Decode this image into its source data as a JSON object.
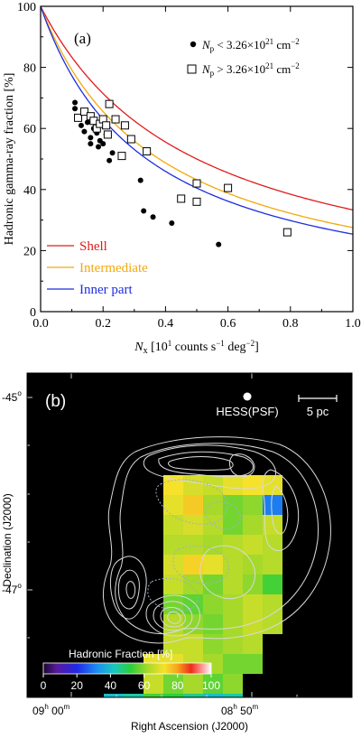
{
  "chart_data": [
    {
      "type": "scatter",
      "panel_label": "(a)",
      "xlabel": "N_x [10^1 counts s^-1 deg^-2]",
      "xlabel_parts": {
        "sym": "N",
        "sub": "x",
        "pre": " [10",
        "sup1": "1",
        "mid": " counts s",
        "sup2": "−1",
        "mid2": " deg",
        "sup3": "−2",
        "post": "]"
      },
      "ylabel": "Hadronic gamma-ray fraction [%]",
      "xlim": [
        0,
        1
      ],
      "ylim": [
        0,
        100
      ],
      "xticks": [
        "0.0",
        "0.2",
        "0.4",
        "0.6",
        "0.8",
        "1.0"
      ],
      "yticks": [
        "0",
        "20",
        "40",
        "60",
        "80",
        "100"
      ],
      "grid": false,
      "legend_position": "top-right",
      "legend": [
        {
          "marker": "filled-circle",
          "text_parts": {
            "sym": "N",
            "sub": "p",
            "rel": " < 3.26×10",
            "sup": "21",
            "unit": " cm",
            "usup": "−2"
          }
        },
        {
          "marker": "open-square",
          "text_parts": {
            "sym": "N",
            "sub": "p",
            "rel": " > 3.26×10",
            "sup": "21",
            "unit": " cm",
            "usup": "−2"
          }
        }
      ],
      "series": [
        {
          "name": "N_p < 3.26×10^21 cm^-2",
          "marker": "filled-circle",
          "points": [
            [
              0.11,
              66.5
            ],
            [
              0.11,
              68.5
            ],
            [
              0.13,
              61
            ],
            [
              0.14,
              59
            ],
            [
              0.15,
              62
            ],
            [
              0.16,
              55
            ],
            [
              0.16,
              57
            ],
            [
              0.17,
              60
            ],
            [
              0.18,
              58.5
            ],
            [
              0.185,
              54
            ],
            [
              0.19,
              56
            ],
            [
              0.2,
              55
            ],
            [
              0.21,
              58
            ],
            [
              0.22,
              49.5
            ],
            [
              0.23,
              52
            ],
            [
              0.32,
              43
            ],
            [
              0.33,
              33
            ],
            [
              0.36,
              31
            ],
            [
              0.42,
              29
            ],
            [
              0.57,
              22
            ]
          ]
        },
        {
          "name": "N_p > 3.26×10^21 cm^-2",
          "marker": "open-square",
          "points": [
            [
              0.12,
              63.5
            ],
            [
              0.14,
              65.5
            ],
            [
              0.16,
              64
            ],
            [
              0.17,
              62.5
            ],
            [
              0.18,
              60
            ],
            [
              0.19,
              61.5
            ],
            [
              0.2,
              63
            ],
            [
              0.21,
              61
            ],
            [
              0.215,
              58
            ],
            [
              0.22,
              68
            ],
            [
              0.24,
              63
            ],
            [
              0.26,
              51
            ],
            [
              0.27,
              61
            ],
            [
              0.29,
              56.5
            ],
            [
              0.34,
              52.5
            ],
            [
              0.45,
              37
            ],
            [
              0.5,
              36
            ],
            [
              0.5,
              42
            ],
            [
              0.6,
              40.5
            ],
            [
              0.79,
              26
            ]
          ]
        }
      ],
      "curves": [
        {
          "name": "Shell",
          "color": "#e11b1b",
          "k": 0.5
        },
        {
          "name": "Intermediate",
          "color": "#f2a90c",
          "k": 0.38
        },
        {
          "name": "Inner part",
          "color": "#1d2ee0",
          "k": 0.34
        }
      ]
    },
    {
      "type": "heatmap",
      "panel_label": "(b)",
      "xlabel": "Right Ascension (J2000)",
      "ylabel": "Declination (J2000)",
      "xticks": [
        {
          "h": "09",
          "m": "00"
        },
        {
          "h": "08",
          "m": "50"
        }
      ],
      "yticks": [
        {
          "deg": "-45",
          "sym": "o"
        },
        {
          "deg": "-47",
          "sym": "o"
        }
      ],
      "psf_label": "HESS(PSF)",
      "scale_label": "5 pc",
      "colorbar": {
        "title": "Hadronic Fraction [%]",
        "ticks": [
          "0",
          "20",
          "40",
          "60",
          "80",
          "100"
        ],
        "range": [
          0,
          100
        ]
      },
      "grid_values": [
        [
          null,
          null,
          null,
          null,
          null,
          null,
          null,
          null,
          null,
          null,
          null,
          null
        ],
        [
          null,
          null,
          null,
          null,
          null,
          null,
          null,
          null,
          null,
          null,
          null,
          null
        ],
        [
          null,
          null,
          null,
          null,
          null,
          null,
          null,
          null,
          null,
          null,
          null,
          null
        ],
        [
          null,
          null,
          null,
          null,
          null,
          null,
          72,
          68,
          66,
          70,
          72,
          70
        ],
        [
          null,
          null,
          null,
          null,
          null,
          null,
          70,
          75,
          62,
          58,
          60,
          30
        ],
        [
          null,
          null,
          null,
          null,
          null,
          null,
          66,
          68,
          64,
          58,
          62,
          66
        ],
        [
          null,
          null,
          null,
          null,
          null,
          null,
          64,
          64,
          62,
          64,
          66,
          64
        ],
        [
          null,
          null,
          null,
          null,
          null,
          null,
          68,
          74,
          70,
          64,
          62,
          64
        ],
        [
          null,
          null,
          null,
          null,
          null,
          null,
          66,
          62,
          58,
          64,
          60,
          54
        ],
        [
          null,
          null,
          null,
          null,
          null,
          null,
          58,
          56,
          60,
          62,
          66,
          64
        ],
        [
          null,
          null,
          null,
          null,
          null,
          null,
          64,
          60,
          58,
          62,
          66,
          64
        ],
        [
          null,
          null,
          null,
          null,
          null,
          null,
          66,
          66,
          60,
          62,
          64,
          null
        ],
        [
          null,
          null,
          null,
          null,
          null,
          70,
          70,
          66,
          62,
          58,
          58,
          null
        ],
        [
          null,
          null,
          null,
          null,
          null,
          66,
          58,
          62,
          56,
          60,
          null,
          null
        ],
        [
          null,
          null,
          null,
          40,
          44,
          54,
          52,
          46,
          40,
          44,
          null,
          null
        ]
      ]
    }
  ]
}
